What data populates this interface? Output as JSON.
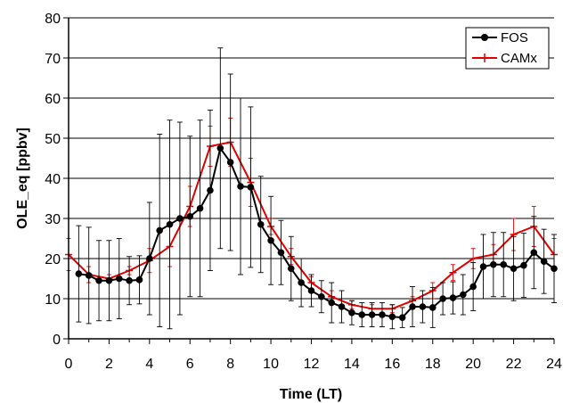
{
  "chart_data": {
    "type": "line",
    "xlabel": "Time (LT)",
    "ylabel": "OLE_eq [ppbv]",
    "xlim": [
      0,
      24
    ],
    "ylim": [
      0,
      80
    ],
    "x_ticks": [
      "0",
      "2",
      "4",
      "6",
      "8",
      "10",
      "12",
      "14",
      "16",
      "18",
      "20",
      "22",
      "24"
    ],
    "y_ticks": [
      "0",
      "10",
      "20",
      "30",
      "40",
      "50",
      "60",
      "70",
      "80"
    ],
    "grid": "horizontal",
    "legend_position": "top-right",
    "series": [
      {
        "name": "FOS",
        "color": "#000000",
        "marker": "circle",
        "x": [
          0.5,
          1,
          1.5,
          2,
          2.5,
          3,
          3.5,
          4,
          4.5,
          5,
          5.5,
          6,
          6.5,
          7,
          7.5,
          8,
          8.5,
          9,
          9.5,
          10,
          10.5,
          11,
          11.5,
          12,
          12.5,
          13,
          13.5,
          14,
          14.5,
          15,
          15.5,
          16,
          16.5,
          17,
          17.5,
          18,
          18.5,
          19,
          19.5,
          20,
          20.5,
          21,
          21.5,
          22,
          22.5,
          23,
          23.5,
          24
        ],
        "y": [
          16.2,
          15.8,
          14.5,
          14.5,
          15.0,
          14.5,
          14.7,
          20.0,
          27.0,
          28.5,
          30.0,
          30.5,
          32.5,
          37.0,
          47.5,
          44.0,
          38.0,
          37.8,
          28.5,
          24.5,
          21.5,
          17.5,
          14.0,
          12.0,
          10.5,
          9.0,
          8.0,
          6.5,
          6.0,
          6.0,
          6.0,
          5.5,
          5.3,
          8.0,
          8.0,
          7.8,
          10.0,
          10.2,
          11.0,
          13.0,
          18.0,
          18.5,
          18.5,
          17.5,
          18.3,
          21.5,
          19.3,
          17.5
        ],
        "err": [
          12,
          12,
          10,
          10,
          10,
          6,
          6,
          14,
          24,
          26,
          24,
          20,
          22,
          20,
          25,
          22,
          22,
          20,
          12,
          11,
          8,
          8,
          6,
          4,
          4,
          5,
          4,
          3,
          3,
          3,
          3,
          3,
          2.5,
          5,
          4,
          5,
          4,
          4,
          5,
          6,
          8,
          8,
          8,
          8,
          8,
          9,
          8,
          8.5
        ]
      },
      {
        "name": "CAMx",
        "color": "#e00000",
        "marker": "plus",
        "x": [
          0,
          1,
          2,
          3,
          4,
          5,
          6,
          7,
          8,
          9,
          10,
          11,
          12,
          13,
          14,
          15,
          16,
          17,
          18,
          19,
          20,
          21,
          22,
          23,
          24
        ],
        "y": [
          21,
          16,
          15,
          17,
          19.5,
          23,
          33,
          48,
          49,
          39,
          28,
          20.5,
          14,
          10.5,
          8.5,
          7.5,
          7.5,
          9.5,
          12,
          16.5,
          20,
          21,
          26,
          28,
          21
        ],
        "err": [
          4,
          2,
          1,
          1,
          3,
          5,
          5,
          5,
          6,
          6,
          2,
          2,
          1.5,
          1.5,
          1,
          1,
          1,
          1,
          2,
          2,
          2.5,
          2.5,
          4,
          5,
          4
        ]
      }
    ]
  }
}
